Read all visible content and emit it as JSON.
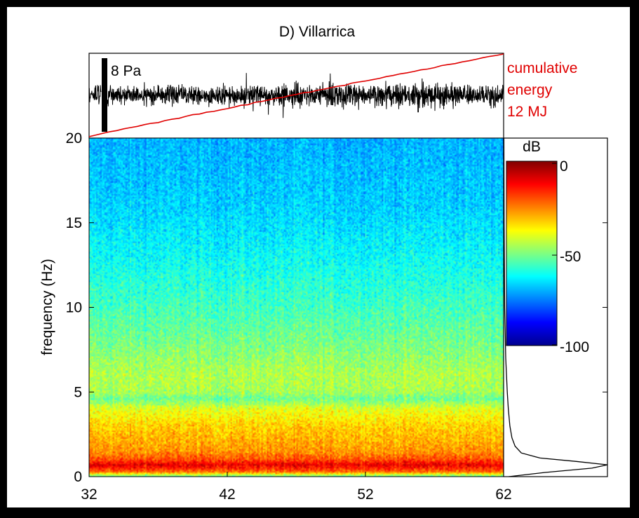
{
  "chart_data": {
    "type": "heatmap",
    "title": "D) Villarrica",
    "ylabel": "frequency (Hz)",
    "xlabel": "",
    "xlim": [
      32,
      62
    ],
    "ylim": [
      0,
      20
    ],
    "x_ticks": [
      "32",
      "42",
      "52",
      "62"
    ],
    "y_ticks": [
      "0",
      "5",
      "10",
      "15",
      "20"
    ],
    "colorbar": {
      "label": "dB",
      "range": [
        -100,
        0
      ],
      "ticks": [
        "0",
        "-50",
        "-100"
      ],
      "colormap": "jet"
    },
    "waveform_panel": {
      "scale_label": "8 Pa",
      "cumulative_energy_label_lines": [
        "cumulative",
        "energy",
        "12 MJ"
      ],
      "energy_line_color": "#e00000"
    },
    "spectrum_profile": {
      "description_free": true,
      "freq": [
        0,
        0.25,
        0.5,
        0.7,
        0.9,
        1.1,
        1.4,
        1.8,
        2.3,
        3,
        4,
        5,
        7,
        10,
        15,
        20
      ],
      "relative_power": [
        0.05,
        0.4,
        0.85,
        1.0,
        0.7,
        0.35,
        0.17,
        0.11,
        0.08,
        0.06,
        0.045,
        0.035,
        0.02,
        0.01,
        0.005,
        0.003
      ]
    },
    "band_power_db": {
      "freq": [
        0,
        0.3,
        0.7,
        1.0,
        1.5,
        2.2,
        3,
        4,
        4.6,
        5,
        6,
        8,
        10,
        13,
        16,
        20
      ],
      "db": [
        -55,
        -22,
        -10,
        -20,
        -27,
        -30,
        -33,
        -40,
        -52,
        -46,
        -45,
        -51,
        -56,
        -62,
        -67,
        -70
      ]
    }
  }
}
